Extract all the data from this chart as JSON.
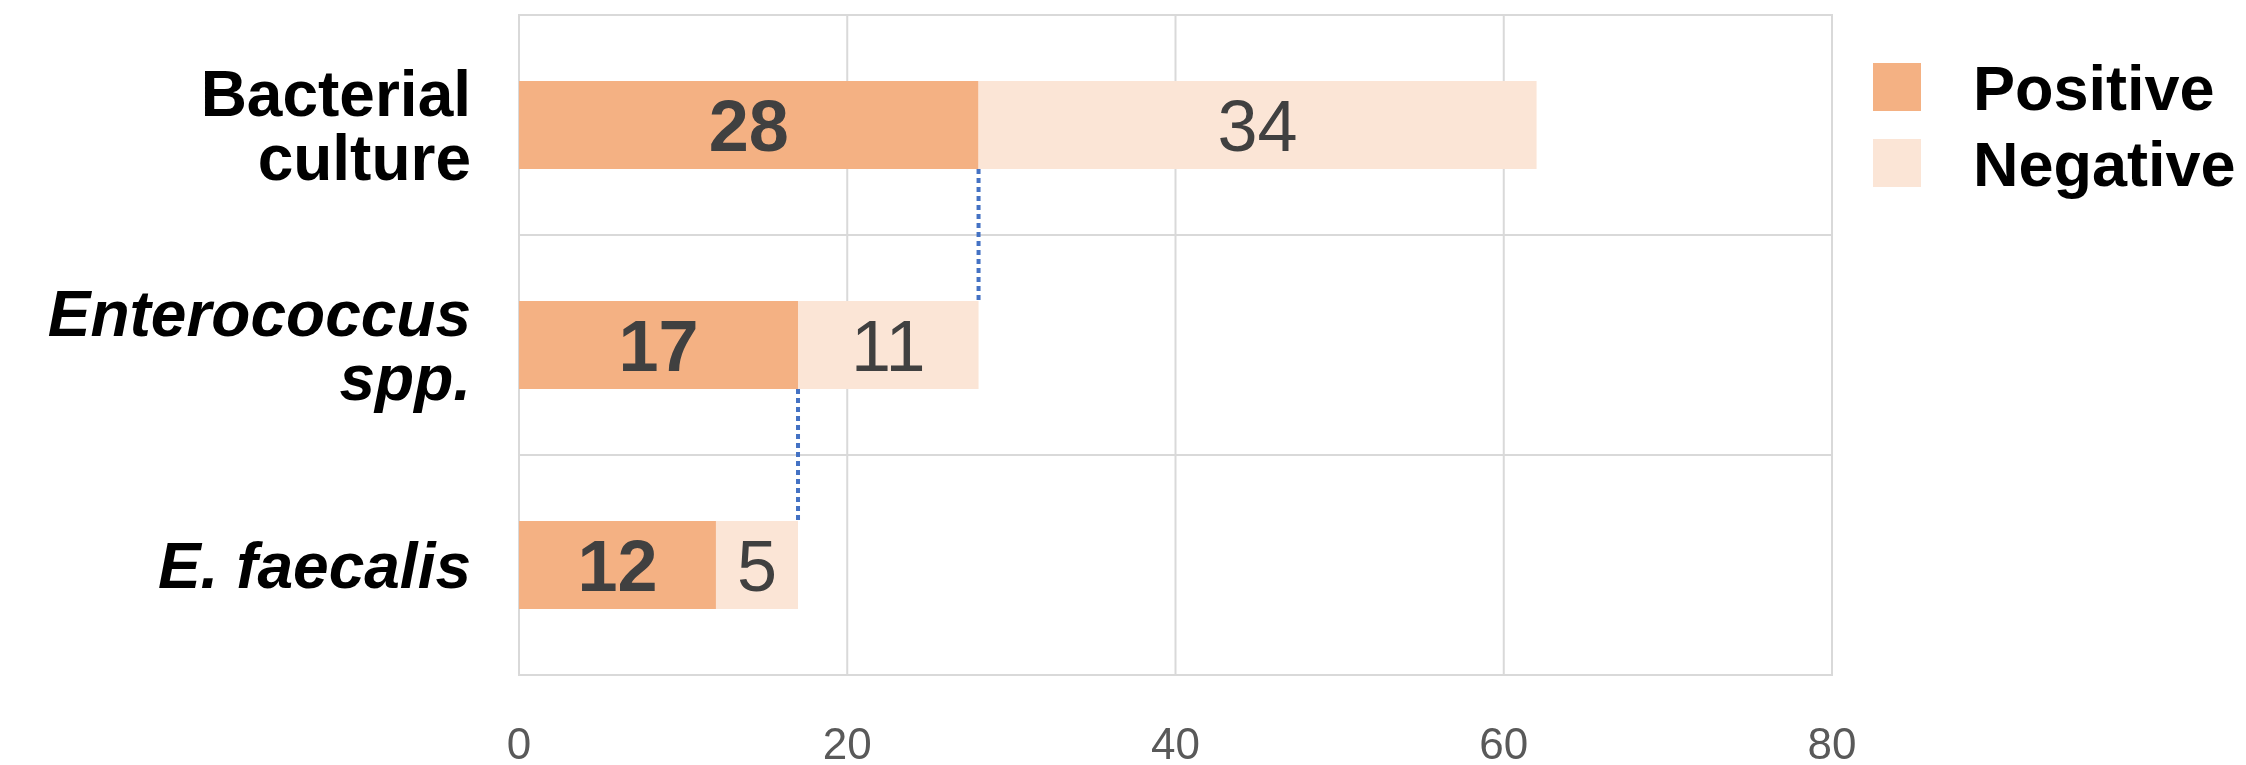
{
  "chart_data": {
    "type": "bar",
    "orientation": "horizontal",
    "stacked": true,
    "categories": [
      "Bacterial culture",
      "Enterococcus spp.",
      "E. faecalis"
    ],
    "series": [
      {
        "name": "Positive",
        "color": "#f4b183",
        "values": [
          28,
          17,
          12
        ]
      },
      {
        "name": "Negative",
        "color": "#fbe5d6",
        "values": [
          34,
          11,
          5
        ]
      }
    ],
    "xlim": [
      0,
      80
    ],
    "xticks": [
      0,
      20,
      40,
      60,
      80
    ],
    "grid": true,
    "legend": "top right",
    "data_labels": true
  }
}
